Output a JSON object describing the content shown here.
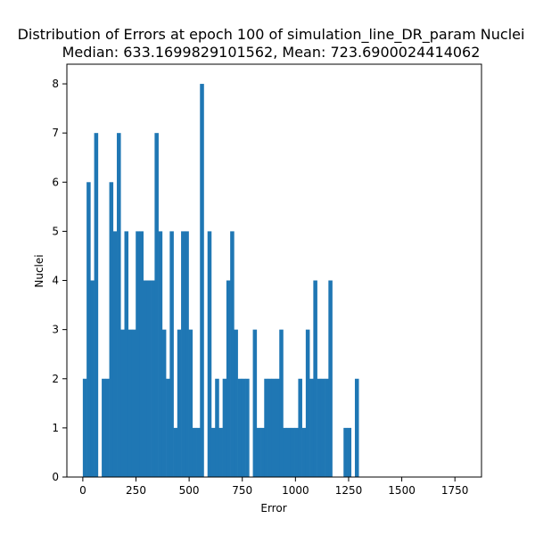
{
  "chart_data": {
    "type": "bar",
    "title": "Distribution of Errors at epoch 100 of simulation_line_DR_param Nuclei",
    "subtitle": "Median: 633.1699829101562, Mean: 723.6900024414062",
    "xlabel": "Error",
    "ylabel": "Nuclei",
    "xlim": [
      -75,
      1875
    ],
    "ylim": [
      0,
      8.4
    ],
    "xticks": [
      0,
      250,
      500,
      750,
      1000,
      1250,
      1500,
      1750
    ],
    "yticks": [
      0,
      1,
      2,
      3,
      4,
      5,
      6,
      7,
      8
    ],
    "grid": false,
    "bar_color": "#1f77b4",
    "bin_start": 0,
    "bin_width": 17.77,
    "values": [
      2,
      6,
      4,
      7,
      0,
      2,
      2,
      6,
      5,
      7,
      3,
      5,
      3,
      3,
      5,
      5,
      4,
      4,
      4,
      7,
      5,
      3,
      2,
      5,
      1,
      3,
      5,
      5,
      3,
      1,
      1,
      8,
      0,
      5,
      1,
      2,
      1,
      2,
      4,
      5,
      3,
      2,
      2,
      2,
      0,
      3,
      1,
      1,
      2,
      2,
      2,
      2,
      3,
      1,
      1,
      1,
      1,
      2,
      1,
      3,
      2,
      4,
      2,
      2,
      2,
      4,
      0,
      0,
      0,
      1,
      1,
      0,
      2
    ]
  }
}
